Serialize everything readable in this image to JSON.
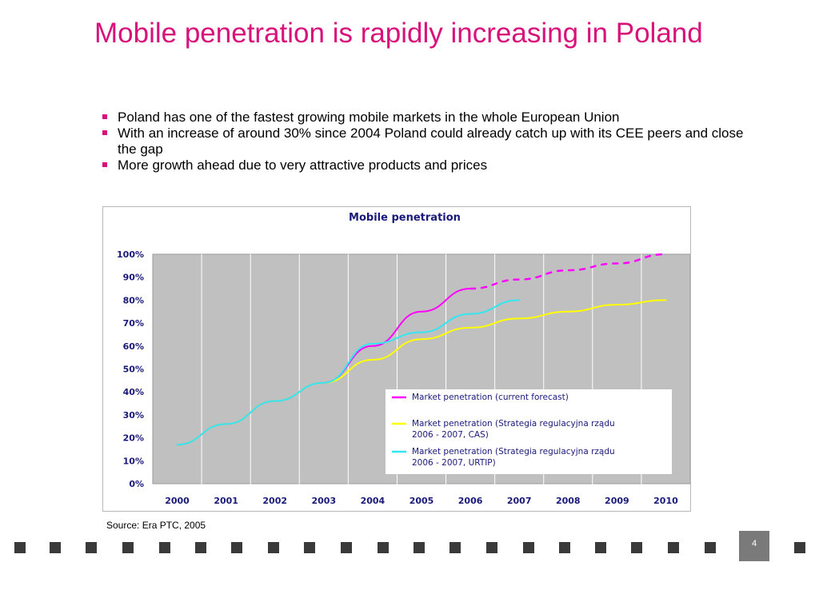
{
  "slide": {
    "title": "Mobile penetration is rapidly increasing in Poland",
    "bullets": [
      "Poland has one of the fastest growing mobile markets in the whole European Union",
      "With an increase of around 30%  since  2004 Poland could already catch up with its CEE peers and close the gap",
      "More growth ahead due to very attractive products and prices"
    ],
    "source": "Source: Era PTC, 2005",
    "page_number": "4"
  },
  "colors": {
    "title": "#d8127a",
    "bullet_marker": "#d8127a",
    "plot_background": "#c0c0c0",
    "axis_text": "#1a1a7a"
  },
  "chart_data": {
    "type": "line",
    "title": "Mobile penetration",
    "xlabel": "",
    "ylabel": "",
    "x": [
      "2000",
      "2001",
      "2002",
      "2003",
      "2004",
      "2005",
      "2006",
      "2007",
      "2008",
      "2009",
      "2010"
    ],
    "y_ticks": [
      "0%",
      "10%",
      "20%",
      "30%",
      "40%",
      "50%",
      "60%",
      "70%",
      "80%",
      "90%",
      "100%"
    ],
    "ylim": [
      0,
      100
    ],
    "grid": true,
    "legend_position": "bottom-right inside plot",
    "series": [
      {
        "name": "Market penetration (current forecast)",
        "color": "#ff00ff",
        "values": [
          17,
          26,
          36,
          44,
          60,
          75,
          85,
          null,
          null,
          null,
          null
        ]
      },
      {
        "name": "",
        "color": "#ff00ff",
        "dashed": true,
        "values": [
          null,
          null,
          null,
          null,
          null,
          null,
          85,
          89,
          93,
          96,
          100
        ]
      },
      {
        "name": "Market penetration (Strategia regulacyjna rządu 2006 - 2007, CAS)",
        "color": "#ffff00",
        "values": [
          17,
          26,
          36,
          44,
          54,
          63,
          68,
          72,
          75,
          78,
          80
        ]
      },
      {
        "name": "Market penetration (Strategia regulacyjna rządu 2006 - 2007, URTIP)",
        "color": "#33e6f0",
        "values": [
          17,
          26,
          36,
          44,
          61,
          66,
          74,
          80,
          null,
          null,
          null
        ]
      }
    ]
  }
}
